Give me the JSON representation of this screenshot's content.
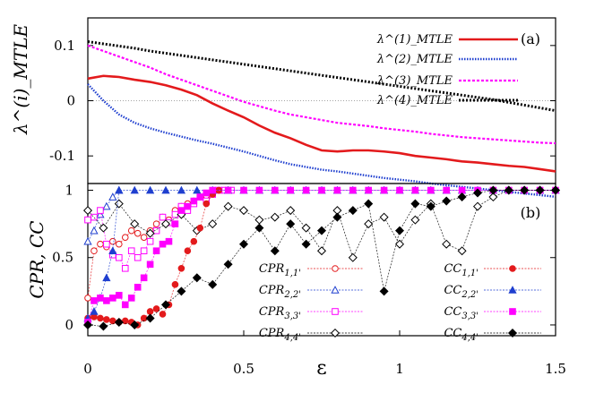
{
  "chart_data": [
    {
      "type": "line",
      "panel_label": "(a)",
      "ylabel": "λ^(i)_MTLE",
      "xlabel": "",
      "xlim": [
        0,
        1.5
      ],
      "ylim": [
        -0.15,
        0.15
      ],
      "yticks": [
        "0.1",
        "0",
        "-0.1"
      ],
      "ytick_values": [
        0.1,
        0,
        -0.1
      ],
      "zero_line": true,
      "legend_position": "top-right",
      "series": [
        {
          "name": "λ^(1)_MTLE",
          "color": "#e31a1c",
          "style": "solid",
          "x": [
            0,
            0.05,
            0.1,
            0.15,
            0.2,
            0.25,
            0.3,
            0.35,
            0.4,
            0.45,
            0.5,
            0.55,
            0.6,
            0.65,
            0.7,
            0.75,
            0.8,
            0.85,
            0.9,
            0.95,
            1.0,
            1.05,
            1.1,
            1.15,
            1.2,
            1.25,
            1.3,
            1.35,
            1.4,
            1.45,
            1.5
          ],
          "y": [
            0.04,
            0.045,
            0.043,
            0.038,
            0.034,
            0.028,
            0.02,
            0.01,
            -0.005,
            -0.018,
            -0.03,
            -0.045,
            -0.058,
            -0.068,
            -0.08,
            -0.09,
            -0.092,
            -0.09,
            -0.09,
            -0.092,
            -0.095,
            -0.1,
            -0.103,
            -0.106,
            -0.11,
            -0.112,
            -0.115,
            -0.118,
            -0.12,
            -0.124,
            -0.128
          ]
        },
        {
          "name": "λ^(2)_MTLE",
          "color": "#1f3fcf",
          "style": "dotted",
          "x": [
            0,
            0.05,
            0.1,
            0.15,
            0.2,
            0.25,
            0.3,
            0.35,
            0.4,
            0.45,
            0.5,
            0.55,
            0.6,
            0.65,
            0.7,
            0.75,
            0.8,
            0.85,
            0.9,
            0.95,
            1.0,
            1.05,
            1.1,
            1.15,
            1.2,
            1.25,
            1.3,
            1.35,
            1.4,
            1.45,
            1.5
          ],
          "y": [
            0.03,
            0.0,
            -0.025,
            -0.04,
            -0.05,
            -0.058,
            -0.065,
            -0.072,
            -0.078,
            -0.085,
            -0.092,
            -0.1,
            -0.108,
            -0.115,
            -0.12,
            -0.125,
            -0.128,
            -0.132,
            -0.136,
            -0.14,
            -0.143,
            -0.146,
            -0.15,
            -0.153,
            -0.156,
            -0.159,
            -0.162,
            -0.165,
            -0.168,
            -0.171,
            -0.174
          ]
        },
        {
          "name": "λ^(3)_MTLE",
          "color": "#ff00ff",
          "style": "dashed",
          "x": [
            0,
            0.05,
            0.1,
            0.15,
            0.2,
            0.25,
            0.3,
            0.35,
            0.4,
            0.45,
            0.5,
            0.55,
            0.6,
            0.65,
            0.7,
            0.75,
            0.8,
            0.85,
            0.9,
            0.95,
            1.0,
            1.05,
            1.1,
            1.15,
            1.2,
            1.25,
            1.3,
            1.35,
            1.4,
            1.45,
            1.5
          ],
          "y": [
            0.1,
            0.09,
            0.08,
            0.07,
            0.06,
            0.048,
            0.038,
            0.028,
            0.018,
            0.008,
            -0.002,
            -0.01,
            -0.018,
            -0.025,
            -0.03,
            -0.035,
            -0.04,
            -0.043,
            -0.046,
            -0.05,
            -0.053,
            -0.056,
            -0.06,
            -0.063,
            -0.066,
            -0.068,
            -0.07,
            -0.072,
            -0.074,
            -0.076,
            -0.077
          ]
        },
        {
          "name": "λ^(4)_MTLE",
          "color": "#000000",
          "style": "dotted-heavy",
          "x": [
            0,
            0.05,
            0.1,
            0.15,
            0.2,
            0.25,
            0.3,
            0.35,
            0.4,
            0.45,
            0.5,
            0.55,
            0.6,
            0.65,
            0.7,
            0.75,
            0.8,
            0.85,
            0.9,
            0.95,
            1.0,
            1.05,
            1.1,
            1.15,
            1.2,
            1.25,
            1.3,
            1.35,
            1.4,
            1.45,
            1.5
          ],
          "y": [
            0.107,
            0.103,
            0.099,
            0.095,
            0.09,
            0.086,
            0.082,
            0.078,
            0.074,
            0.07,
            0.066,
            0.062,
            0.058,
            0.054,
            0.05,
            0.046,
            0.042,
            0.038,
            0.034,
            0.03,
            0.026,
            0.022,
            0.018,
            0.014,
            0.01,
            0.006,
            0.002,
            -0.003,
            -0.008,
            -0.013,
            -0.018
          ]
        }
      ]
    },
    {
      "type": "line",
      "panel_label": "(b)",
      "ylabel": "CPR, CC",
      "xlabel": "ε",
      "xlim": [
        0,
        1.5
      ],
      "ylim": [
        -0.08,
        1.05
      ],
      "yticks": [
        "1",
        "0.5",
        "0"
      ],
      "ytick_values": [
        1,
        0.5,
        0
      ],
      "xticks": [
        "0",
        "0.5",
        "1",
        "1.5"
      ],
      "xtick_values": [
        0,
        0.5,
        1,
        1.5
      ],
      "legend_position": "bottom",
      "legend": [
        {
          "label": "CPR",
          "sub": "1,1'",
          "color": "#e31a1c",
          "marker": "circle-open",
          "column": "left"
        },
        {
          "label": "CPR",
          "sub": "2,2'",
          "color": "#1f3fcf",
          "marker": "triangle-open",
          "column": "left"
        },
        {
          "label": "CPR",
          "sub": "3,3'",
          "color": "#ff00ff",
          "marker": "square-open",
          "column": "left"
        },
        {
          "label": "CPR",
          "sub": "4,4'",
          "color": "#000000",
          "marker": "diamond-open",
          "column": "left"
        },
        {
          "label": "CC",
          "sub": "1,1'",
          "color": "#e31a1c",
          "marker": "circle-filled",
          "column": "right"
        },
        {
          "label": "CC",
          "sub": "2,2'",
          "color": "#1f3fcf",
          "marker": "triangle-filled",
          "column": "right"
        },
        {
          "label": "CC",
          "sub": "3,3'",
          "color": "#ff00ff",
          "marker": "square-filled",
          "column": "right"
        },
        {
          "label": "CC",
          "sub": "4,4'",
          "color": "#000000",
          "marker": "diamond-filled",
          "column": "right"
        }
      ],
      "series": [
        {
          "id": "cpr1",
          "color": "#e31a1c",
          "marker": "circle-open",
          "x": [
            0,
            0.02,
            0.04,
            0.06,
            0.08,
            0.1,
            0.12,
            0.14,
            0.16,
            0.18,
            0.2,
            0.22,
            0.24,
            0.26,
            0.28,
            0.3,
            0.32,
            0.34,
            0.36,
            0.38,
            0.4,
            0.42
          ],
          "y": [
            0.2,
            0.55,
            0.6,
            0.58,
            0.62,
            0.6,
            0.65,
            0.7,
            0.68,
            0.65,
            0.7,
            0.75,
            0.8,
            0.78,
            0.85,
            0.88,
            0.9,
            0.92,
            0.95,
            0.96,
            0.98,
            1.0
          ]
        },
        {
          "id": "cpr2",
          "color": "#1f3fcf",
          "marker": "triangle-open",
          "x": [
            0,
            0.02,
            0.04,
            0.06,
            0.08,
            0.1
          ],
          "y": [
            0.62,
            0.7,
            0.82,
            0.88,
            0.95,
            1.0
          ]
        },
        {
          "id": "cpr3",
          "color": "#ff00ff",
          "marker": "square-open",
          "x": [
            0,
            0.02,
            0.04,
            0.06,
            0.08,
            0.1,
            0.12,
            0.14,
            0.16,
            0.18,
            0.2,
            0.22,
            0.24,
            0.26,
            0.28,
            0.3,
            0.32,
            0.34,
            0.36,
            0.38,
            0.4,
            0.42,
            0.44,
            0.46
          ],
          "y": [
            0.78,
            0.8,
            0.85,
            0.6,
            0.52,
            0.5,
            0.42,
            0.55,
            0.5,
            0.55,
            0.62,
            0.7,
            0.8,
            0.76,
            0.82,
            0.88,
            0.85,
            0.9,
            0.95,
            0.92,
            0.97,
            1.0,
            1.0,
            1.0
          ]
        },
        {
          "id": "cpr4",
          "color": "#000000",
          "marker": "diamond-open",
          "x": [
            0,
            0.05,
            0.1,
            0.15,
            0.2,
            0.25,
            0.3,
            0.35,
            0.4,
            0.45,
            0.5,
            0.55,
            0.6,
            0.65,
            0.7,
            0.75,
            0.8,
            0.85,
            0.9,
            0.95,
            1.0,
            1.05,
            1.1,
            1.15,
            1.2,
            1.25,
            1.3,
            1.35,
            1.4,
            1.45,
            1.5
          ],
          "y": [
            0.85,
            0.72,
            0.9,
            0.75,
            0.68,
            0.75,
            0.82,
            0.7,
            0.75,
            0.88,
            0.85,
            0.78,
            0.8,
            0.85,
            0.72,
            0.55,
            0.85,
            0.5,
            0.75,
            0.8,
            0.6,
            0.78,
            0.9,
            0.6,
            0.55,
            0.88,
            0.95,
            1.0,
            1.0,
            1.0,
            1.0
          ]
        },
        {
          "id": "cc1",
          "color": "#e31a1c",
          "marker": "circle-filled",
          "x": [
            0,
            0.02,
            0.04,
            0.06,
            0.08,
            0.1,
            0.12,
            0.14,
            0.16,
            0.18,
            0.2,
            0.22,
            0.24,
            0.26,
            0.28,
            0.3,
            0.32,
            0.34,
            0.36,
            0.38,
            0.4,
            0.42
          ],
          "y": [
            0.05,
            0.06,
            0.05,
            0.04,
            0.03,
            0.02,
            0.03,
            0.02,
            0.0,
            0.05,
            0.1,
            0.12,
            0.08,
            0.15,
            0.3,
            0.42,
            0.55,
            0.62,
            0.72,
            0.9,
            0.97,
            1.0
          ]
        },
        {
          "id": "cc2",
          "color": "#1f3fcf",
          "marker": "triangle-filled",
          "x": [
            0,
            0.02,
            0.04,
            0.06,
            0.08,
            0.1,
            0.15,
            0.2,
            0.25,
            0.3,
            0.35,
            0.4,
            0.45,
            0.5,
            0.55,
            0.6,
            0.65,
            0.7,
            0.75,
            0.8,
            0.85,
            0.9,
            0.95,
            1.0,
            1.05,
            1.1,
            1.15,
            1.2,
            1.25,
            1.3,
            1.35,
            1.4,
            1.45,
            1.5
          ],
          "y": [
            0.05,
            0.1,
            0.2,
            0.35,
            0.55,
            1.0,
            1.0,
            1.0,
            1.0,
            1.0,
            1.0,
            1.0,
            1.0,
            1.0,
            1.0,
            1.0,
            1.0,
            1.0,
            1.0,
            1.0,
            1.0,
            1.0,
            1.0,
            1.0,
            1.0,
            1.0,
            1.0,
            1.0,
            1.0,
            1.0,
            1.0,
            1.0,
            1.0,
            1.0
          ]
        },
        {
          "id": "cc3",
          "color": "#ff00ff",
          "marker": "square-filled",
          "x": [
            0,
            0.02,
            0.04,
            0.06,
            0.08,
            0.1,
            0.12,
            0.14,
            0.16,
            0.18,
            0.2,
            0.22,
            0.24,
            0.26,
            0.28,
            0.3,
            0.32,
            0.34,
            0.36,
            0.38,
            0.4,
            0.45,
            0.5,
            0.55,
            0.6,
            0.65,
            0.7,
            0.75,
            0.8,
            0.85,
            0.9,
            0.95,
            1.0,
            1.05,
            1.1,
            1.15,
            1.2,
            1.25,
            1.3,
            1.35,
            1.4,
            1.45,
            1.5
          ],
          "y": [
            0.02,
            0.18,
            0.2,
            0.18,
            0.2,
            0.22,
            0.15,
            0.2,
            0.28,
            0.35,
            0.45,
            0.55,
            0.6,
            0.62,
            0.75,
            0.85,
            0.88,
            0.92,
            0.95,
            0.98,
            1.0,
            1.0,
            1.0,
            1.0,
            1.0,
            1.0,
            1.0,
            1.0,
            1.0,
            1.0,
            1.0,
            1.0,
            1.0,
            1.0,
            1.0,
            1.0,
            1.0,
            1.0,
            1.0,
            1.0,
            1.0,
            1.0,
            1.0
          ]
        },
        {
          "id": "cc4",
          "color": "#000000",
          "marker": "diamond-filled",
          "x": [
            0,
            0.05,
            0.1,
            0.15,
            0.2,
            0.25,
            0.3,
            0.35,
            0.4,
            0.45,
            0.5,
            0.55,
            0.6,
            0.65,
            0.7,
            0.75,
            0.8,
            0.85,
            0.9,
            0.95,
            1.0,
            1.05,
            1.1,
            1.15,
            1.2,
            1.25,
            1.3,
            1.35,
            1.4,
            1.45,
            1.5
          ],
          "y": [
            0.0,
            -0.01,
            0.02,
            0.0,
            0.05,
            0.15,
            0.25,
            0.35,
            0.3,
            0.45,
            0.6,
            0.72,
            0.55,
            0.75,
            0.6,
            0.7,
            0.8,
            0.85,
            0.9,
            0.25,
            0.7,
            0.9,
            0.88,
            0.92,
            0.95,
            0.98,
            1.0,
            1.0,
            1.0,
            1.0,
            1.0
          ]
        }
      ]
    }
  ]
}
